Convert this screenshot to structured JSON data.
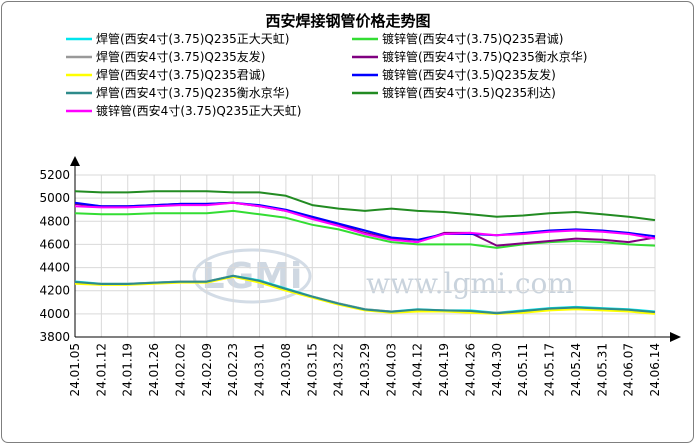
{
  "chart_data": {
    "type": "line",
    "title": "西安焊接钢管价格走势图",
    "xlabel": "",
    "ylabel": "",
    "ylim": [
      3800,
      5200
    ],
    "yticks": [
      3800,
      4000,
      4200,
      4400,
      4600,
      4800,
      5000,
      5200
    ],
    "x": [
      "24.01.05",
      "24.01.12",
      "24.01.19",
      "24.01.26",
      "24.02.02",
      "24.02.09",
      "24.02.23",
      "24.03.01",
      "24.03.08",
      "24.03.15",
      "24.03.22",
      "24.03.29",
      "24.04.03",
      "24.04.12",
      "24.04.19",
      "24.04.26",
      "24.04.30",
      "24.05.11",
      "24.05.17",
      "24.05.24",
      "24.05.31",
      "24.06.07",
      "24.06.14"
    ],
    "grid": true,
    "legend_position": "top",
    "series": [
      {
        "name": "焊管(西安4寸(3.75)Q235正大天虹)",
        "color": "#00e5ee",
        "values": [
          4280,
          4260,
          4260,
          4270,
          4280,
          4280,
          4330,
          4290,
          4220,
          4150,
          4090,
          4040,
          4020,
          4040,
          4030,
          4030,
          4010,
          4030,
          4050,
          4060,
          4050,
          4040,
          4020
        ]
      },
      {
        "name": "镀锌管(西安4寸(3.75)Q235君诚)",
        "color": "#33dd33",
        "values": [
          4870,
          4860,
          4860,
          4870,
          4870,
          4870,
          4890,
          4860,
          4830,
          4770,
          4730,
          4670,
          4620,
          4600,
          4600,
          4600,
          4570,
          4600,
          4620,
          4630,
          4620,
          4600,
          4590
        ]
      },
      {
        "name": "焊管(西安4寸(3.75)Q235友发)",
        "color": "#999999",
        "values": [
          4270,
          4260,
          4260,
          4270,
          4280,
          4280,
          4330,
          4280,
          4210,
          4150,
          4090,
          4040,
          4020,
          4030,
          4030,
          4020,
          4010,
          4020,
          4040,
          4050,
          4040,
          4030,
          4010
        ]
      },
      {
        "name": "镀锌管(西安4寸(3.75)Q235衡水京华)",
        "color": "#800080",
        "values": [
          4950,
          4930,
          4930,
          4940,
          4950,
          4950,
          4960,
          4930,
          4890,
          4830,
          4770,
          4700,
          4650,
          4620,
          4700,
          4700,
          4590,
          4610,
          4630,
          4650,
          4640,
          4620,
          4660
        ]
      },
      {
        "name": "焊管(西安4寸(3.75)Q235君诚)",
        "color": "#ffff00",
        "values": [
          4260,
          4250,
          4250,
          4260,
          4270,
          4270,
          4320,
          4270,
          4200,
          4140,
          4080,
          4030,
          4010,
          4020,
          4020,
          4010,
          4000,
          4010,
          4030,
          4040,
          4030,
          4020,
          4000
        ]
      },
      {
        "name": "镀锌管(西安4寸(3.5)Q235友发)",
        "color": "#0000ff",
        "values": [
          4960,
          4930,
          4930,
          4940,
          4950,
          4950,
          4960,
          4940,
          4900,
          4840,
          4780,
          4720,
          4660,
          4640,
          4690,
          4690,
          4680,
          4700,
          4720,
          4730,
          4720,
          4700,
          4670
        ]
      },
      {
        "name": "焊管(西安4寸(3.75)Q235衡水京华)",
        "color": "#2e8b8b",
        "values": [
          4275,
          4258,
          4258,
          4268,
          4278,
          4278,
          4328,
          4285,
          4215,
          4148,
          4088,
          4038,
          4018,
          4038,
          4030,
          4025,
          4005,
          4025,
          4045,
          4055,
          4045,
          4035,
          4015
        ]
      },
      {
        "name": "镀锌管(西安4寸(3.5)Q235利达)",
        "color": "#228b22",
        "values": [
          5060,
          5050,
          5050,
          5060,
          5060,
          5060,
          5050,
          5050,
          5020,
          4940,
          4910,
          4890,
          4910,
          4890,
          4880,
          4860,
          4840,
          4850,
          4870,
          4880,
          4860,
          4840,
          4810
        ]
      },
      {
        "name": "镀锌管(西安4寸(3.75)Q235正大天虹)",
        "color": "#ff00ff",
        "values": [
          4930,
          4920,
          4920,
          4930,
          4940,
          4940,
          4960,
          4930,
          4890,
          4820,
          4760,
          4690,
          4640,
          4620,
          4690,
          4700,
          4680,
          4690,
          4710,
          4720,
          4710,
          4690,
          4650
        ]
      }
    ]
  },
  "watermark": {
    "logo": "LGMi",
    "url": "www.lgmi.com"
  }
}
